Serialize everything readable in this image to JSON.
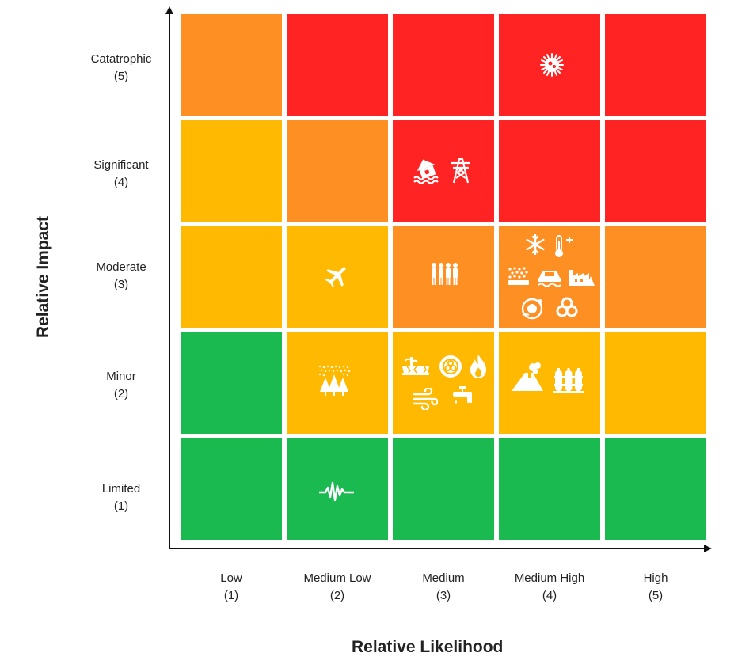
{
  "axes": {
    "x_title": "Relative Likelihood",
    "y_title": "Relative Impact"
  },
  "likelihood": [
    {
      "name": "Low",
      "level": "(1)"
    },
    {
      "name": "Medium Low",
      "level": "(2)"
    },
    {
      "name": "Medium",
      "level": "(3)"
    },
    {
      "name": "Medium High",
      "level": "(4)"
    },
    {
      "name": "High",
      "level": "(5)"
    }
  ],
  "impact": [
    {
      "name": "Catatrophic",
      "level": "(5)"
    },
    {
      "name": "Significant",
      "level": "(4)"
    },
    {
      "name": "Moderate",
      "level": "(3)"
    },
    {
      "name": "Minor",
      "level": "(2)"
    },
    {
      "name": "Limited",
      "level": "(1)"
    }
  ],
  "colors": {
    "red": "#FF2323",
    "orange": "#FD8F23",
    "yellow": "#FFB900",
    "green": "#1BBA51",
    "icon": "#FFFFFF",
    "axis": "#111111"
  },
  "cells": [
    [
      "orange",
      "red",
      "red",
      "red",
      "red"
    ],
    [
      "yellow",
      "orange",
      "red",
      "red",
      "red"
    ],
    [
      "yellow",
      "yellow",
      "orange",
      "orange",
      "orange"
    ],
    [
      "green",
      "yellow",
      "yellow",
      "yellow",
      "yellow"
    ],
    [
      "green",
      "green",
      "green",
      "green",
      "green"
    ]
  ],
  "hazards": [
    {
      "icon": "pandemic-virus-icon",
      "impact": 5,
      "likelihood": 4
    },
    {
      "icon": "flood-house-icon",
      "impact": 4,
      "likelihood": 3
    },
    {
      "icon": "power-tower-icon",
      "impact": 4,
      "likelihood": 3
    },
    {
      "icon": "airplane-icon",
      "impact": 3,
      "likelihood": 2
    },
    {
      "icon": "crowd-people-icon",
      "impact": 3,
      "likelihood": 3
    },
    {
      "icon": "snowflake-icon",
      "impact": 3,
      "likelihood": 4
    },
    {
      "icon": "thermometer-heat-icon",
      "impact": 3,
      "likelihood": 4
    },
    {
      "icon": "hail-storm-icon",
      "impact": 3,
      "likelihood": 4
    },
    {
      "icon": "flooded-car-icon",
      "impact": 3,
      "likelihood": 4
    },
    {
      "icon": "industrial-accident-icon",
      "impact": 3,
      "likelihood": 4
    },
    {
      "icon": "space-weather-icon",
      "impact": 3,
      "likelihood": 4
    },
    {
      "icon": "biohazard-icon",
      "impact": 3,
      "likelihood": 4
    },
    {
      "icon": "snow-forest-icon",
      "impact": 2,
      "likelihood": 2
    },
    {
      "icon": "drought-icon",
      "impact": 2,
      "likelihood": 3
    },
    {
      "icon": "hazmat-spill-icon",
      "impact": 2,
      "likelihood": 3
    },
    {
      "icon": "wildfire-icon",
      "impact": 2,
      "likelihood": 3
    },
    {
      "icon": "wind-storm-icon",
      "impact": 2,
      "likelihood": 3
    },
    {
      "icon": "water-tap-icon",
      "impact": 2,
      "likelihood": 3
    },
    {
      "icon": "volcano-icon",
      "impact": 2,
      "likelihood": 4
    },
    {
      "icon": "gas-cylinders-icon",
      "impact": 2,
      "likelihood": 4
    },
    {
      "icon": "earthquake-wave-icon",
      "impact": 1,
      "likelihood": 2
    }
  ]
}
